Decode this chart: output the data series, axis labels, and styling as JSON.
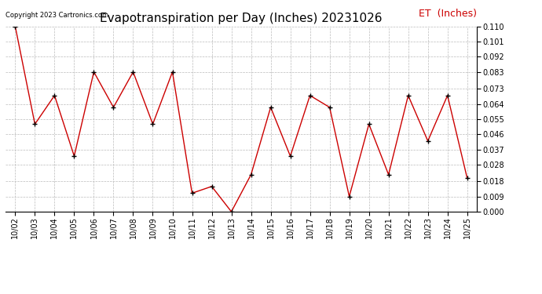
{
  "title": "Evapotranspiration per Day (Inches) 20231026",
  "legend_label": "ET  (Inches)",
  "copyright": "Copyright 2023 Cartronics.com",
  "x_labels": [
    "10/02",
    "10/03",
    "10/04",
    "10/05",
    "10/06",
    "10/07",
    "10/08",
    "10/09",
    "10/10",
    "10/11",
    "10/12",
    "10/13",
    "10/14",
    "10/15",
    "10/16",
    "10/17",
    "10/18",
    "10/19",
    "10/20",
    "10/21",
    "10/22",
    "10/23",
    "10/24",
    "10/25"
  ],
  "y_values": [
    0.11,
    0.052,
    0.069,
    0.033,
    0.083,
    0.062,
    0.083,
    0.052,
    0.083,
    0.011,
    0.015,
    0.0,
    0.022,
    0.062,
    0.033,
    0.069,
    0.062,
    0.009,
    0.052,
    0.022,
    0.069,
    0.042,
    0.069,
    0.02
  ],
  "line_color": "#cc0000",
  "marker_color": "#000000",
  "grid_color": "#bbbbbb",
  "background_color": "#ffffff",
  "ylim": [
    0.0,
    0.11
  ],
  "yticks": [
    0.0,
    0.009,
    0.018,
    0.028,
    0.037,
    0.046,
    0.055,
    0.064,
    0.073,
    0.083,
    0.092,
    0.101,
    0.11
  ],
  "title_fontsize": 11,
  "legend_color": "#cc0000",
  "tick_fontsize": 7,
  "legend_fontsize": 9,
  "copyright_fontsize": 6
}
